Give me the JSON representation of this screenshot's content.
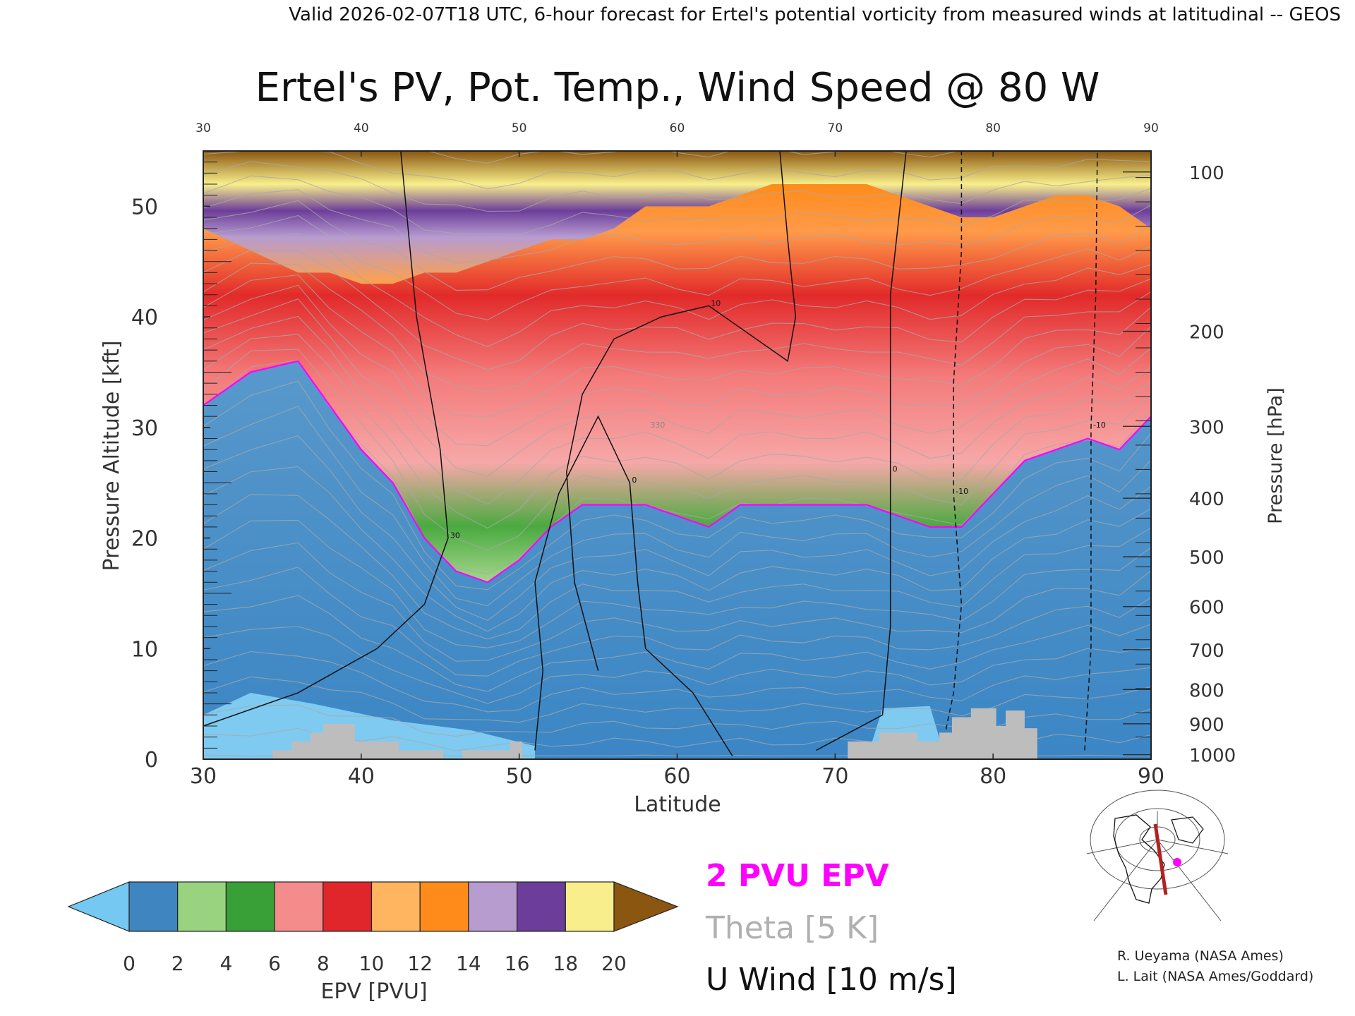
{
  "header": {
    "valid_line": "Valid 2026-02-07T18 UTC, 6-hour forecast for Ertel's potential vorticity from measured winds at latitudinal -- GEOS"
  },
  "chart_data": {
    "type": "heatmap",
    "title": "Ertel's PV, Pot. Temp., Wind Speed @ 80 W",
    "xlabel": "Latitude",
    "ylabel_left": "Pressure Altitude [kft]",
    "ylabel_right": "Pressure [hPa]",
    "xlim": [
      30,
      90
    ],
    "ylim_kft": [
      0,
      55
    ],
    "x_ticks_bottom": [
      "30",
      "40",
      "50",
      "60",
      "70",
      "80",
      "90"
    ],
    "x_ticks_top": [
      "30",
      "40",
      "50",
      "60",
      "70",
      "80",
      "90"
    ],
    "y_ticks_left": [
      "0",
      "10",
      "20",
      "30",
      "40",
      "50"
    ],
    "y_ticks_right": [
      {
        "label": "1000",
        "kft": 0.4
      },
      {
        "label": "900",
        "kft": 3.2
      },
      {
        "label": "800",
        "kft": 6.3
      },
      {
        "label": "700",
        "kft": 9.9
      },
      {
        "label": "600",
        "kft": 13.8
      },
      {
        "label": "500",
        "kft": 18.3
      },
      {
        "label": "400",
        "kft": 23.6
      },
      {
        "label": "300",
        "kft": 30.1
      },
      {
        "label": "200",
        "kft": 38.7
      },
      {
        "label": "100",
        "kft": 53.1
      }
    ],
    "epv_surface": {
      "columns": [
        {
          "lat": 30,
          "tropo_kft": 32,
          "upper_kft": 48
        },
        {
          "lat": 33,
          "tropo_kft": 35,
          "upper_kft": 46
        },
        {
          "lat": 36,
          "tropo_kft": 36,
          "upper_kft": 44
        },
        {
          "lat": 38,
          "tropo_kft": 32,
          "upper_kft": 44
        },
        {
          "lat": 40,
          "tropo_kft": 28,
          "upper_kft": 43
        },
        {
          "lat": 42,
          "tropo_kft": 25,
          "upper_kft": 43
        },
        {
          "lat": 44,
          "tropo_kft": 20,
          "upper_kft": 44
        },
        {
          "lat": 46,
          "tropo_kft": 17,
          "upper_kft": 44
        },
        {
          "lat": 48,
          "tropo_kft": 16,
          "upper_kft": 45
        },
        {
          "lat": 50,
          "tropo_kft": 18,
          "upper_kft": 46
        },
        {
          "lat": 52,
          "tropo_kft": 21,
          "upper_kft": 47
        },
        {
          "lat": 54,
          "tropo_kft": 23,
          "upper_kft": 47
        },
        {
          "lat": 56,
          "tropo_kft": 23,
          "upper_kft": 48
        },
        {
          "lat": 58,
          "tropo_kft": 23,
          "upper_kft": 50
        },
        {
          "lat": 60,
          "tropo_kft": 22,
          "upper_kft": 50
        },
        {
          "lat": 62,
          "tropo_kft": 21,
          "upper_kft": 50
        },
        {
          "lat": 64,
          "tropo_kft": 23,
          "upper_kft": 51
        },
        {
          "lat": 66,
          "tropo_kft": 23,
          "upper_kft": 52
        },
        {
          "lat": 68,
          "tropo_kft": 23,
          "upper_kft": 52
        },
        {
          "lat": 70,
          "tropo_kft": 23,
          "upper_kft": 52
        },
        {
          "lat": 72,
          "tropo_kft": 23,
          "upper_kft": 52
        },
        {
          "lat": 74,
          "tropo_kft": 22,
          "upper_kft": 51
        },
        {
          "lat": 76,
          "tropo_kft": 21,
          "upper_kft": 50
        },
        {
          "lat": 78,
          "tropo_kft": 21,
          "upper_kft": 49
        },
        {
          "lat": 80,
          "tropo_kft": 24,
          "upper_kft": 49
        },
        {
          "lat": 82,
          "tropo_kft": 27,
          "upper_kft": 50
        },
        {
          "lat": 84,
          "tropo_kft": 28,
          "upper_kft": 51
        },
        {
          "lat": 86,
          "tropo_kft": 29,
          "upper_kft": 51
        },
        {
          "lat": 88,
          "tropo_kft": 28,
          "upper_kft": 50
        },
        {
          "lat": 90,
          "tropo_kft": 31,
          "upper_kft": 48
        }
      ]
    },
    "terrain_kft": [
      {
        "lat": 30,
        "kft": 0
      },
      {
        "lat": 34.4,
        "kft": 0
      },
      {
        "lat": 34.4,
        "kft": 0.8
      },
      {
        "lat": 35.6,
        "kft": 0.8
      },
      {
        "lat": 35.6,
        "kft": 1.6
      },
      {
        "lat": 36.8,
        "kft": 1.6
      },
      {
        "lat": 36.8,
        "kft": 2.4
      },
      {
        "lat": 37.6,
        "kft": 2.4
      },
      {
        "lat": 37.6,
        "kft": 3.2
      },
      {
        "lat": 39.6,
        "kft": 3.2
      },
      {
        "lat": 39.6,
        "kft": 1.6
      },
      {
        "lat": 42.4,
        "kft": 1.6
      },
      {
        "lat": 42.4,
        "kft": 0.8
      },
      {
        "lat": 45.2,
        "kft": 0.8
      },
      {
        "lat": 45.2,
        "kft": 0
      },
      {
        "lat": 46.4,
        "kft": 0
      },
      {
        "lat": 46.4,
        "kft": 0.8
      },
      {
        "lat": 49.4,
        "kft": 0.8
      },
      {
        "lat": 49.4,
        "kft": 1.6
      },
      {
        "lat": 50.2,
        "kft": 1.6
      },
      {
        "lat": 50.2,
        "kft": 0
      },
      {
        "lat": 70.8,
        "kft": 0
      },
      {
        "lat": 70.8,
        "kft": 1.6
      },
      {
        "lat": 72.8,
        "kft": 1.6
      },
      {
        "lat": 72.8,
        "kft": 2.4
      },
      {
        "lat": 75.2,
        "kft": 2.4
      },
      {
        "lat": 75.2,
        "kft": 1.6
      },
      {
        "lat": 76.6,
        "kft": 1.6
      },
      {
        "lat": 76.6,
        "kft": 2.4
      },
      {
        "lat": 77.4,
        "kft": 2.4
      },
      {
        "lat": 77.4,
        "kft": 3.8
      },
      {
        "lat": 78.6,
        "kft": 3.8
      },
      {
        "lat": 78.6,
        "kft": 4.6
      },
      {
        "lat": 80.2,
        "kft": 4.6
      },
      {
        "lat": 80.2,
        "kft": 3.0
      },
      {
        "lat": 80.8,
        "kft": 3.0
      },
      {
        "lat": 80.8,
        "kft": 4.4
      },
      {
        "lat": 82.0,
        "kft": 4.4
      },
      {
        "lat": 82.0,
        "kft": 2.8
      },
      {
        "lat": 82.8,
        "kft": 2.8
      },
      {
        "lat": 82.8,
        "kft": 0
      },
      {
        "lat": 90,
        "kft": 0
      }
    ],
    "theta_label": {
      "lat": 58.3,
      "kft": 30,
      "text": "330"
    },
    "u_wind_contours": [
      {
        "label": "10",
        "points": [
          [
            55,
            8
          ],
          [
            53.5,
            16
          ],
          [
            53,
            26
          ],
          [
            54,
            33
          ],
          [
            56,
            38
          ],
          [
            59,
            40
          ],
          [
            62,
            41
          ],
          [
            65,
            38
          ],
          [
            67,
            36
          ],
          [
            67.5,
            40
          ],
          [
            67,
            47
          ],
          [
            66.5,
            55
          ]
        ]
      },
      {
        "label": "0",
        "points": [
          [
            51,
            0.8
          ],
          [
            51.5,
            8
          ],
          [
            51,
            16
          ],
          [
            52.5,
            24
          ],
          [
            55,
            31
          ],
          [
            57,
            25
          ],
          [
            57.5,
            16
          ],
          [
            58,
            10
          ],
          [
            61,
            6
          ],
          [
            63.5,
            0.3
          ]
        ]
      },
      {
        "label": "0",
        "points": [
          [
            68.8,
            0.8
          ],
          [
            73,
            4
          ],
          [
            73.5,
            12
          ],
          [
            73.5,
            26
          ],
          [
            73.5,
            42
          ],
          [
            74.5,
            55
          ]
        ]
      },
      {
        "label": "30",
        "points": [
          [
            30,
            3
          ],
          [
            36,
            6
          ],
          [
            41,
            10
          ],
          [
            44,
            14
          ],
          [
            45.5,
            20
          ],
          [
            45,
            28
          ],
          [
            43.5,
            40
          ],
          [
            42.5,
            55
          ]
        ]
      },
      {
        "label": "-10",
        "dashed": true,
        "points": [
          [
            76.8,
            1.2
          ],
          [
            77.5,
            6
          ],
          [
            78,
            14
          ],
          [
            77.5,
            24
          ],
          [
            77.5,
            34
          ],
          [
            78,
            46
          ],
          [
            78,
            55
          ]
        ]
      },
      {
        "label": "-10",
        "dashed": true,
        "points": [
          [
            85.8,
            0.8
          ],
          [
            86.2,
            10
          ],
          [
            86.2,
            20
          ],
          [
            86.2,
            30
          ],
          [
            86.5,
            42
          ],
          [
            86.6,
            55
          ]
        ]
      }
    ],
    "legend": {
      "items": [
        "2 PVU EPV",
        "Theta [5 K]",
        "U Wind [10 m/s]"
      ],
      "colors": {
        "epv": "#ff00ff",
        "theta": "#b0b0b0",
        "wind": "#111111"
      }
    },
    "colorbar": {
      "label": "EPV [PVU]",
      "ticks": [
        "0",
        "2",
        "4",
        "6",
        "8",
        "10",
        "12",
        "14",
        "16",
        "18",
        "20"
      ],
      "colors": [
        "#75c8f2",
        "#3f85c0",
        "#99d37f",
        "#38a036",
        "#f48c8c",
        "#e0262a",
        "#ffb560",
        "#ff8c1a",
        "#b79cd0",
        "#6c3e9a",
        "#f8ef8c",
        "#8a5610"
      ]
    }
  },
  "credits": {
    "line1": "R. Ueyama (NASA Ames)",
    "line2": "L. Lait (NASA Ames/Goddard)"
  }
}
